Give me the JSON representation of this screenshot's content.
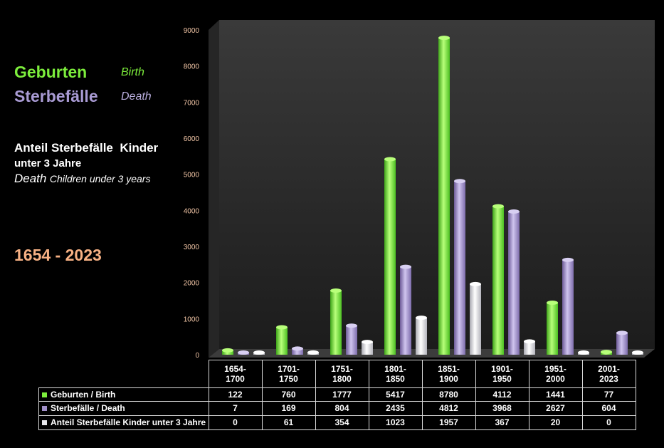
{
  "legend_panel": {
    "births_de": "Geburten",
    "births_en": "Birth",
    "deaths_de": "Sterbefälle",
    "deaths_en": "Death",
    "child_title_line1": "Anteil Sterbefälle  Kinder",
    "child_title_line2": "unter 3 Jahre",
    "child_title_en_death": "Death",
    "child_title_en_rest": "Children under 3 years",
    "period": "1654 - 2023"
  },
  "colors": {
    "births": "#7dee3c",
    "deaths": "#a08fc8",
    "children": "#e8e8ec",
    "period_text": "#f7b184",
    "axis_text": "#f5c8a8"
  },
  "chart_data": {
    "type": "bar",
    "categories": [
      [
        "1654-",
        "1700"
      ],
      [
        "1701-",
        "1750"
      ],
      [
        "1751-",
        "1800"
      ],
      [
        "1801-",
        "1850"
      ],
      [
        "1851-",
        "1900"
      ],
      [
        "1901-",
        "1950"
      ],
      [
        "1951-",
        "2000"
      ],
      [
        "2001-",
        "2023"
      ]
    ],
    "series": [
      {
        "name": "Geburten / Birth",
        "values": [
          122,
          760,
          1777,
          5417,
          8780,
          4112,
          1441,
          77
        ]
      },
      {
        "name": "Sterbefälle / Death",
        "values": [
          7,
          169,
          804,
          2435,
          4812,
          3968,
          2627,
          604
        ]
      },
      {
        "name": "Anteil Sterbefälle Kinder unter 3 Jahre",
        "values": [
          0,
          61,
          354,
          1023,
          1957,
          367,
          20,
          0
        ]
      }
    ],
    "ylim": [
      0,
      9000
    ],
    "yticks": [
      0,
      1000,
      2000,
      3000,
      4000,
      5000,
      6000,
      7000,
      8000,
      9000
    ],
    "grid": false,
    "legend": "data-table"
  }
}
